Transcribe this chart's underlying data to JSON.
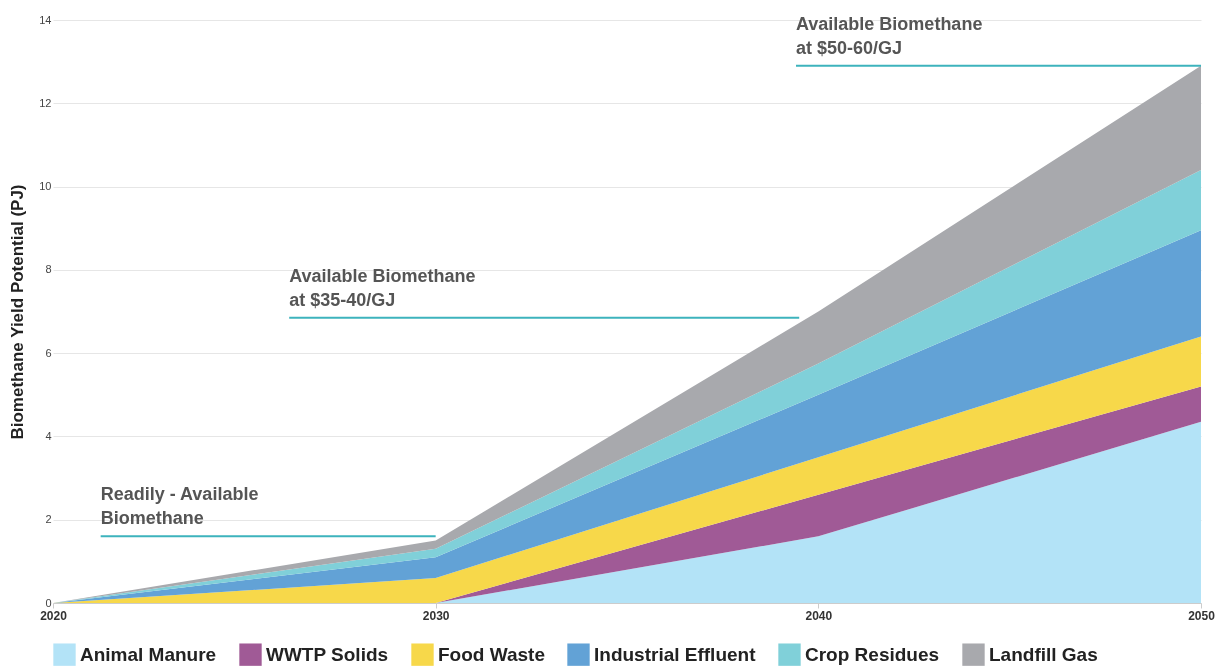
{
  "chart_data": {
    "type": "area",
    "stacked": true,
    "ylabel": "Biomethane Yield Potential (PJ)",
    "x": [
      2020,
      2030,
      2040,
      2050
    ],
    "xlim": [
      2020,
      2050
    ],
    "xticks": [
      2020,
      2030,
      2040,
      2050
    ],
    "ylim": [
      0,
      14
    ],
    "yticks": [
      0,
      2,
      4,
      6,
      8,
      10,
      12,
      14
    ],
    "grid": "y",
    "legend": "bottom",
    "series": [
      {
        "name": "Animal Manure",
        "color": "#b3e3f7",
        "values": [
          0,
          0,
          1.6,
          4.35
        ]
      },
      {
        "name": "WWTP Solids",
        "color": "#a05a96",
        "values": [
          0,
          0,
          1,
          0.85
        ]
      },
      {
        "name": "Food Waste",
        "color": "#f7d84a",
        "values": [
          0,
          0.6,
          0.9,
          1.2
        ]
      },
      {
        "name": "Industrial Effluent",
        "color": "#62a2d6",
        "values": [
          0,
          0.5,
          1.5,
          2.55
        ]
      },
      {
        "name": "Crop Residues",
        "color": "#80d0d9",
        "values": [
          0,
          0.2,
          0.75,
          1.45
        ]
      },
      {
        "name": "Landfill Gas",
        "color": "#a8a9ad",
        "values": [
          0,
          0.2,
          1.25,
          2.5
        ]
      }
    ],
    "annotations": [
      {
        "text": "Readily - Available\nBiomethane",
        "x": 2030,
        "y": 1.6
      },
      {
        "text": "Available Biomethane\nat $35-40/GJ",
        "x": 2039.5,
        "y": 6.85
      },
      {
        "text": "Available Biomethane\nat $50-60/GJ",
        "x": 2050,
        "y": 12.9
      }
    ]
  }
}
